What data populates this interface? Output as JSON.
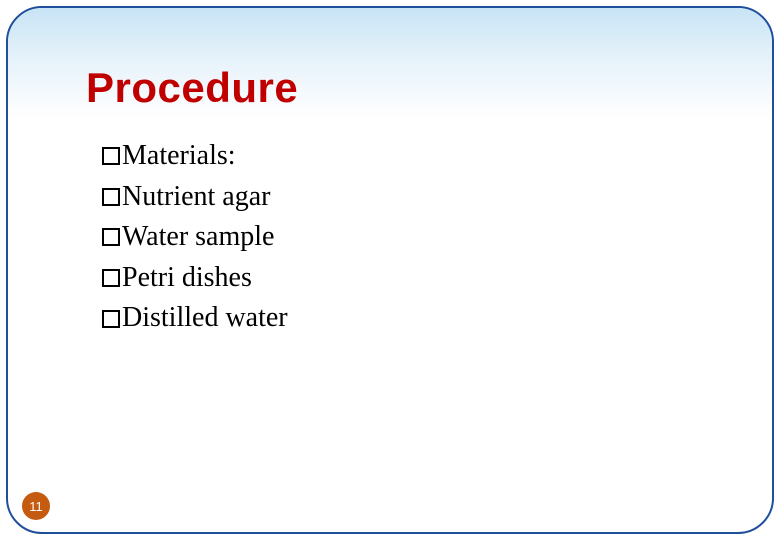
{
  "slide": {
    "title": "Procedure",
    "title_color": "#c00000",
    "title_fontsize": 42,
    "items": [
      {
        "label": "Materials:"
      },
      {
        "label": "Nutrient agar"
      },
      {
        "label": "Water sample"
      },
      {
        "label": "Petri dishes"
      },
      {
        "label": "Distilled water"
      }
    ],
    "item_fontsize": 28,
    "item_color": "#000000",
    "bullet_style": "hollow-square",
    "page_number": "11",
    "page_badge_bg": "#c55a11",
    "page_badge_fg": "#ffffff",
    "frame_border_color": "#1f4e9c",
    "frame_border_radius": 36,
    "gradient_top": "#c8e4f5",
    "gradient_bottom": "#ffffff",
    "background": "#ffffff"
  }
}
